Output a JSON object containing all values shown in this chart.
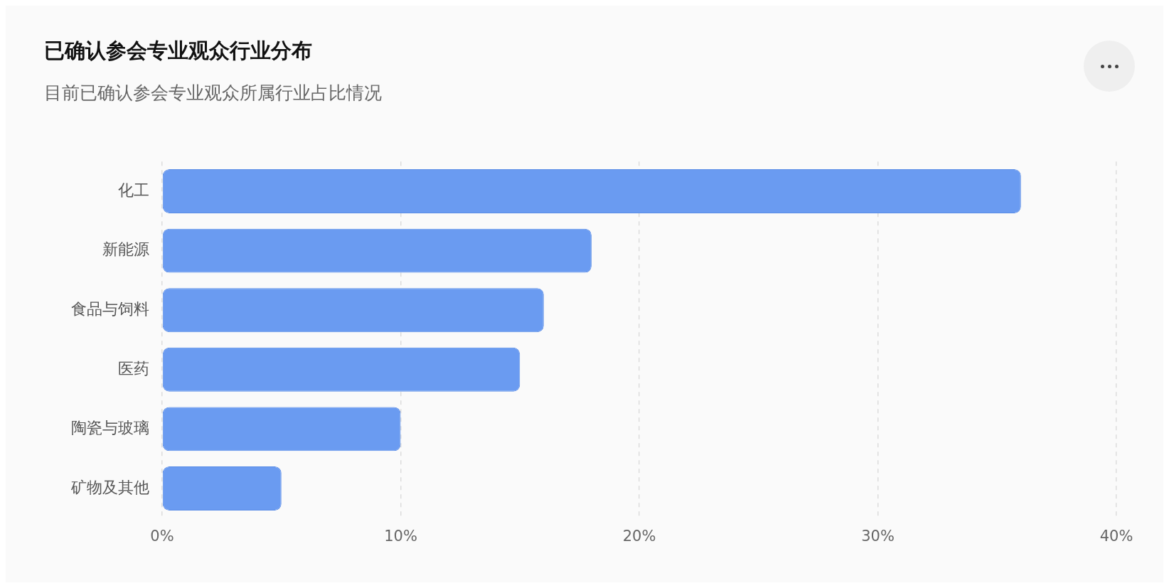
{
  "chart_data": {
    "type": "bar",
    "orientation": "horizontal",
    "title": "已确认参会专业观众行业分布",
    "subtitle": "目前已确认参会专业观众所属行业占比情况",
    "categories": [
      "化工",
      "新能源",
      "食品与饲料",
      "医药",
      "陶瓷与玻璃",
      "矿物及其他"
    ],
    "values": [
      36,
      18,
      16,
      15,
      10,
      5
    ],
    "color": "#6a9bf1",
    "xlim": [
      0,
      40
    ],
    "xticks": [
      {
        "value": 0,
        "label": "0%"
      },
      {
        "value": 10,
        "label": "10%"
      },
      {
        "value": 20,
        "label": "20%"
      },
      {
        "value": 30,
        "label": "30%"
      },
      {
        "value": 40,
        "label": "40%"
      }
    ],
    "grid": "x"
  }
}
